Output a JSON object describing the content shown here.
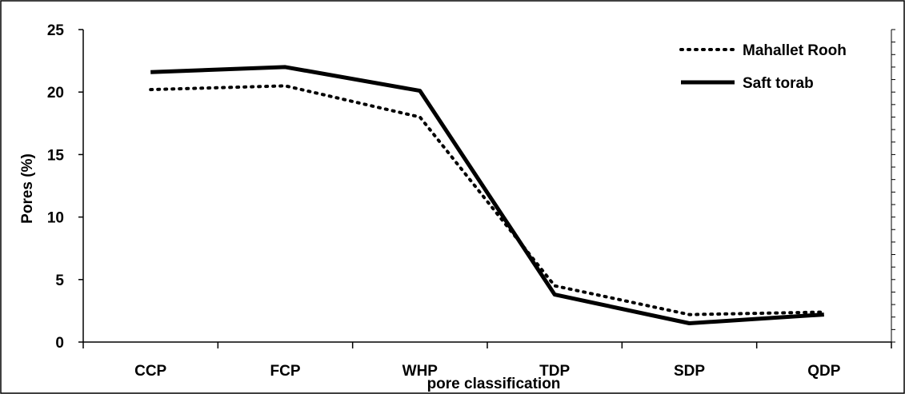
{
  "chart_data": {
    "type": "line",
    "title": "",
    "xlabel": "pore classification",
    "ylabel": "Pores (%)",
    "categories": [
      "CCP",
      "FCP",
      "WHP",
      "TDP",
      "SDP",
      "QDP"
    ],
    "ylim": [
      0,
      25
    ],
    "yticks": [
      "0",
      "5",
      "10",
      "15",
      "20",
      "25"
    ],
    "grid": false,
    "legend_position": "top-right",
    "series": [
      {
        "name": "Mahallet Rooh",
        "style": "dotted",
        "color": "#000000",
        "values": [
          20.2,
          20.5,
          18.0,
          4.5,
          2.2,
          2.4
        ]
      },
      {
        "name": "Saft torab",
        "style": "solid",
        "color": "#000000",
        "values": [
          21.6,
          22.0,
          20.1,
          3.8,
          1.5,
          2.2
        ]
      }
    ]
  }
}
